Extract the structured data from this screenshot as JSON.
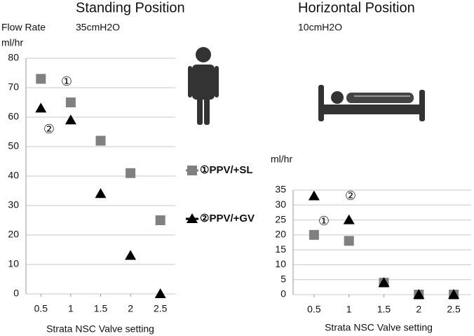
{
  "chart_data": [
    {
      "type": "line",
      "title": "Standing  Position",
      "subtitle": "35cmH2O",
      "y_label_top": "Flow Rate",
      "y_label": "ml/hr",
      "x_label": "Strata   NSC Valve setting",
      "x": [
        0.5,
        1,
        1.5,
        2,
        2.5
      ],
      "xlim": [
        0.25,
        2.75
      ],
      "xticks": [
        0.5,
        1,
        1.5,
        2,
        2.5
      ],
      "ylim": [
        0,
        80
      ],
      "yticks": [
        0,
        10,
        20,
        30,
        40,
        50,
        60,
        70,
        80
      ],
      "grid": true,
      "series": [
        {
          "name": "①PPV/+SL",
          "color": "#808080",
          "marker": "square",
          "values": [
            73,
            65,
            52,
            41,
            25
          ]
        },
        {
          "name": "②PPV/+GV",
          "color": "#000000",
          "marker": "triangle",
          "values": [
            63,
            59,
            34,
            13,
            0
          ]
        }
      ],
      "annotations": [
        "①",
        "②"
      ]
    },
    {
      "type": "line",
      "title": "Horizontal Position",
      "subtitle": "10cmH2O",
      "y_label": "ml/hr",
      "x_label": "Strata NSC Valve setting",
      "x": [
        0.5,
        1,
        1.5,
        2,
        2.5
      ],
      "xlim": [
        0.2,
        2.75
      ],
      "xticks": [
        0.5,
        1,
        1.5,
        2,
        2.5
      ],
      "ylim": [
        0,
        35
      ],
      "yticks": [
        0,
        5,
        10,
        15,
        20,
        25,
        30,
        35
      ],
      "grid": true,
      "series": [
        {
          "color": "#808080",
          "marker": "square",
          "values": [
            20,
            18,
            4,
            0,
            0
          ]
        },
        {
          "color": "#000000",
          "marker": "triangle",
          "values": [
            33,
            25,
            4,
            0,
            0
          ]
        }
      ],
      "annotations": [
        "②",
        "①"
      ]
    }
  ]
}
